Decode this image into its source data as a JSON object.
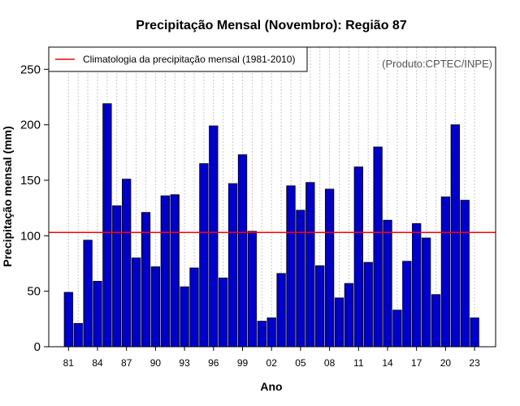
{
  "chart_data": {
    "type": "bar",
    "title": "Precipitação Mensal (Novembro): Região 87",
    "xlabel": "Ano",
    "ylabel": "Precipitação mensal (mm)",
    "ylim": [
      0,
      270
    ],
    "yticks": [
      0,
      50,
      100,
      150,
      200,
      250
    ],
    "credit": "(Produto:CPTEC/INPE)",
    "legend": {
      "label": "Climatologia da precipitação mensal (1981-2010)",
      "position": "top-left"
    },
    "climatology": 103,
    "bar_color": "#0000cc",
    "line_color": "#ff0000",
    "categories": [
      "81",
      "82",
      "83",
      "84",
      "85",
      "86",
      "87",
      "88",
      "89",
      "90",
      "91",
      "92",
      "93",
      "94",
      "95",
      "96",
      "97",
      "98",
      "99",
      "00",
      "01",
      "02",
      "03",
      "04",
      "05",
      "06",
      "07",
      "08",
      "09",
      "10",
      "11",
      "12",
      "13",
      "14",
      "15",
      "16",
      "17",
      "18",
      "19",
      "20",
      "21",
      "22",
      "23"
    ],
    "tick_labels": [
      "81",
      "84",
      "87",
      "90",
      "93",
      "96",
      "99",
      "02",
      "05",
      "08",
      "11",
      "14",
      "17",
      "20",
      "23"
    ],
    "values": [
      49,
      21,
      96,
      59,
      219,
      127,
      151,
      80,
      121,
      72,
      136,
      137,
      54,
      71,
      165,
      199,
      62,
      147,
      173,
      104,
      23,
      26,
      66,
      145,
      123,
      148,
      73,
      142,
      44,
      57,
      162,
      76,
      180,
      114,
      33,
      77,
      111,
      98,
      47,
      135,
      200,
      132,
      26
    ]
  }
}
